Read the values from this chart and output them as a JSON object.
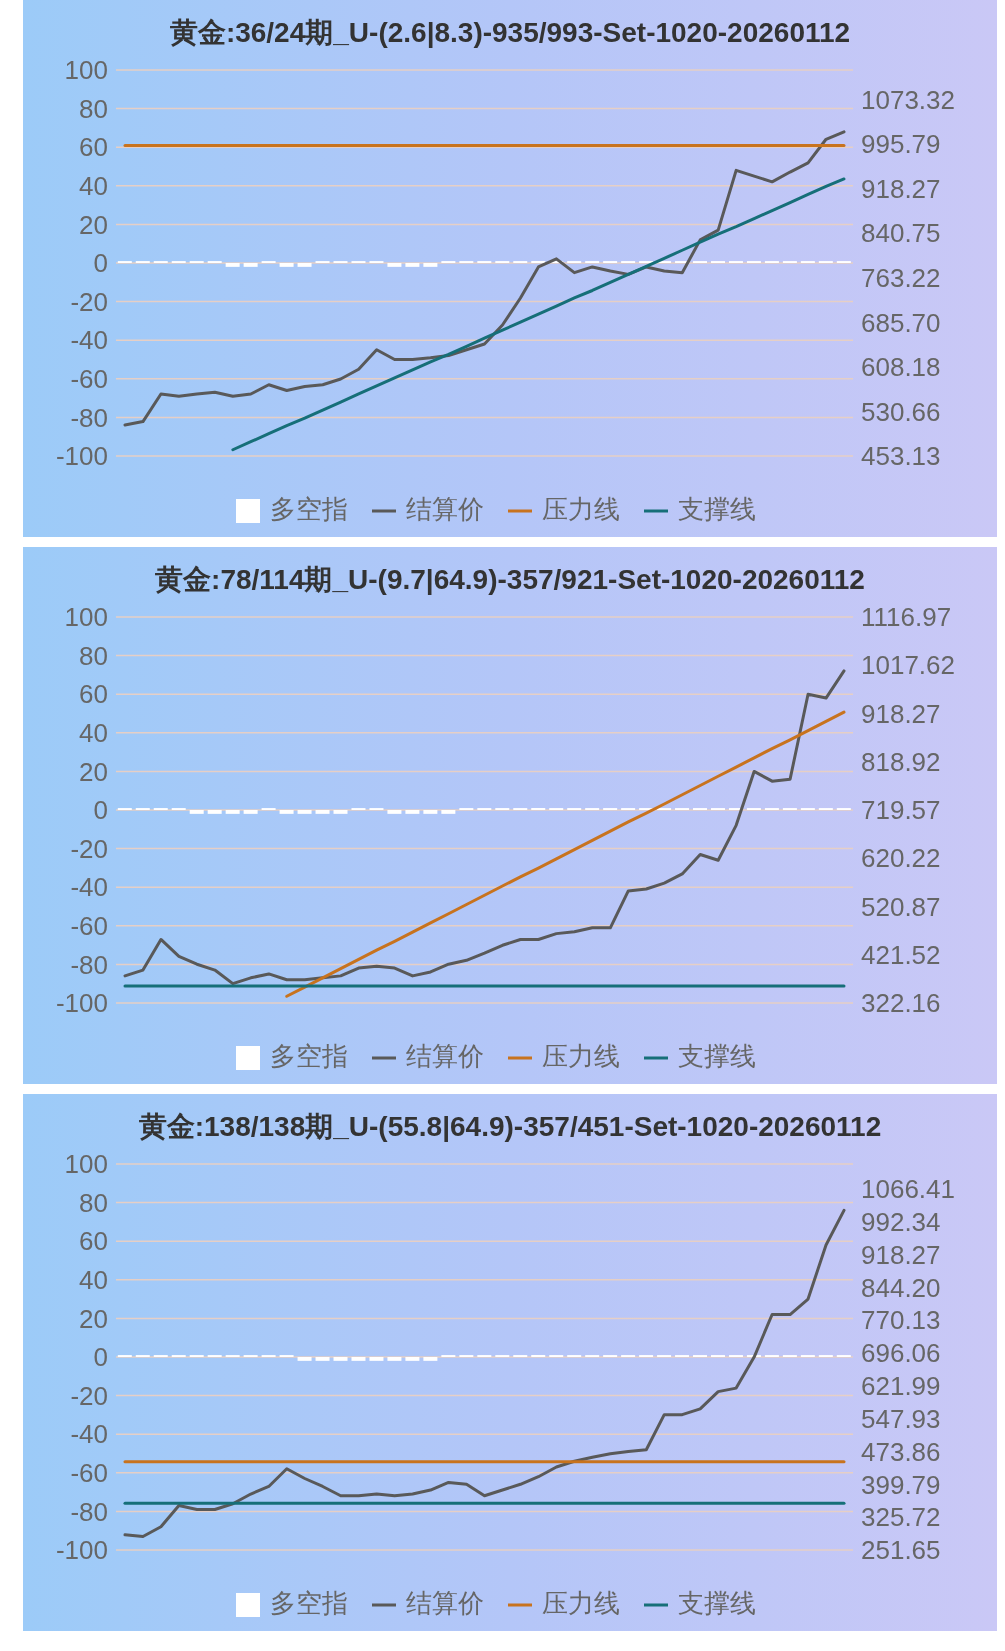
{
  "chart_data": [
    {
      "type": "line",
      "title": "黄金:36/24期_U-(2.6|8.3)-935/993-Set-1020-20260112",
      "categories": [
        null,
        null,
        null,
        null,
        null,
        null,
        null,
        null,
        null,
        null,
        null,
        null,
        null,
        null,
        null,
        null,
        null,
        null,
        null,
        null,
        null,
        null,
        null,
        null,
        null,
        null,
        null,
        null,
        null,
        null,
        null,
        null,
        null,
        null,
        null,
        null,
        null,
        null,
        null,
        null,
        null
      ],
      "series": [
        {
          "name": "多空指",
          "type": "bar",
          "color": "#ffffff",
          "values": [
            1,
            1,
            1,
            1,
            1,
            1,
            -2,
            -2,
            1,
            -2,
            -2,
            1,
            1,
            1,
            1,
            -2,
            -2,
            -2,
            1,
            1,
            1,
            1,
            1,
            1,
            1,
            1,
            1,
            1,
            1,
            1,
            1,
            1,
            1,
            1,
            1,
            1,
            1,
            1,
            1,
            1,
            1
          ]
        },
        {
          "name": "结算价",
          "axis": "y2",
          "color": "#595959",
          "values": [
            507,
            513,
            561,
            557,
            561,
            564,
            557,
            561,
            577,
            567,
            574,
            577,
            587,
            604,
            638,
            621,
            621,
            624,
            628,
            638,
            648,
            681,
            728,
            782,
            796,
            772,
            782,
            775,
            769,
            782,
            775,
            772,
            829,
            846,
            950,
            940,
            930,
            947,
            963,
            1004,
            1017
          ]
        },
        {
          "name": "压力线",
          "axis": "y2",
          "color": "#c8731e",
          "values": [
            993,
            993,
            993,
            993,
            993,
            993,
            993,
            993,
            993,
            993,
            993,
            993,
            993,
            993,
            993,
            993,
            993,
            993,
            993,
            993,
            993,
            993,
            993,
            993,
            993,
            993,
            993,
            993,
            993,
            993,
            993,
            993,
            993,
            993,
            993,
            993,
            993,
            993,
            993,
            993,
            993
          ]
        },
        {
          "name": "支撑线",
          "axis": "y2",
          "color": "#166f78",
          "values": [
            null,
            null,
            null,
            null,
            null,
            null,
            464,
            478,
            492,
            506,
            519,
            533,
            547,
            561,
            575,
            589,
            603,
            617,
            630,
            644,
            658,
            672,
            686,
            700,
            714,
            728,
            741,
            755,
            769,
            783,
            797,
            811,
            825,
            839,
            852,
            866,
            880,
            894,
            908,
            922,
            935
          ]
        }
      ],
      "ylim": [
        -100,
        100
      ],
      "yticks": [
        -100,
        -80,
        -60,
        -40,
        -20,
        0,
        20,
        40,
        60,
        80,
        100
      ],
      "y2lim": [
        453.13,
        1124.5
      ],
      "y2ticks": [
        453.13,
        530.66,
        608.18,
        {
          "value": 685.7,
          "label": "685.70"
        },
        763.22,
        840.75,
        918.27,
        995.79,
        1073.32
      ],
      "grid": "y",
      "legend": "bottom"
    },
    {
      "type": "line",
      "title": "黄金:78/114期_U-(9.7|64.9)-357/921-Set-1020-20260112",
      "categories": [
        null,
        null,
        null,
        null,
        null,
        null,
        null,
        null,
        null,
        null,
        null,
        null,
        null,
        null,
        null,
        null,
        null,
        null,
        null,
        null,
        null,
        null,
        null,
        null,
        null,
        null,
        null,
        null,
        null,
        null,
        null,
        null,
        null,
        null,
        null,
        null,
        null,
        null,
        null,
        null,
        null
      ],
      "series": [
        {
          "name": "多空指",
          "type": "bar",
          "color": "#ffffff",
          "values": [
            1,
            1,
            1,
            1,
            -2,
            -2,
            -2,
            -2,
            1,
            -2,
            -2,
            -2,
            -2,
            1,
            1,
            -2,
            -2,
            -2,
            -2,
            1,
            1,
            1,
            1,
            1,
            1,
            1,
            1,
            1,
            1,
            1,
            1,
            1,
            1,
            1,
            1,
            1,
            1,
            1,
            1,
            1,
            1
          ]
        },
        {
          "name": "结算价",
          "axis": "y2",
          "color": "#595959",
          "values": [
            378,
            390,
            453,
            418,
            402,
            390,
            362,
            374,
            382,
            370,
            370,
            374,
            378,
            394,
            398,
            394,
            378,
            386,
            402,
            410,
            425,
            441,
            453,
            453,
            465,
            469,
            477,
            477,
            553,
            557,
            569,
            588,
            628,
            616,
            688,
            799,
            779,
            783,
            958,
            950,
            1006
          ]
        },
        {
          "name": "压力线",
          "axis": "y2",
          "color": "#c8731e",
          "values": [
            null,
            null,
            null,
            null,
            null,
            null,
            null,
            null,
            null,
            336,
            355,
            374,
            393,
            412,
            431,
            449,
            468,
            487,
            506,
            525,
            544,
            563,
            582,
            600,
            619,
            638,
            657,
            676,
            695,
            713,
            732,
            751,
            770,
            789,
            808,
            827,
            846,
            864,
            883,
            902,
            921
          ]
        },
        {
          "name": "支撑线",
          "axis": "y2",
          "color": "#166f78",
          "values": [
            357,
            357,
            357,
            357,
            357,
            357,
            357,
            357,
            357,
            357,
            357,
            357,
            357,
            357,
            357,
            357,
            357,
            357,
            357,
            357,
            357,
            357,
            357,
            357,
            357,
            357,
            357,
            357,
            357,
            357,
            357,
            357,
            357,
            357,
            357,
            357,
            357,
            357,
            357,
            357,
            357
          ]
        }
      ],
      "ylim": [
        -100,
        100
      ],
      "yticks": [
        -100,
        -80,
        -60,
        -40,
        -20,
        0,
        20,
        40,
        60,
        80,
        100
      ],
      "y2lim": [
        322.16,
        1116.97
      ],
      "y2ticks": [
        322.16,
        421.52,
        520.87,
        620.22,
        719.57,
        818.92,
        918.27,
        1017.62,
        1116.97
      ],
      "grid": "y",
      "legend": "bottom"
    },
    {
      "type": "line",
      "title": "黄金:138/138期_U-(55.8|64.9)-357/451-Set-1020-20260112",
      "categories": [
        null,
        null,
        null,
        null,
        null,
        null,
        null,
        null,
        null,
        null,
        null,
        null,
        null,
        null,
        null,
        null,
        null,
        null,
        null,
        null,
        null,
        null,
        null,
        null,
        null,
        null,
        null,
        null,
        null,
        null,
        null,
        null,
        null,
        null,
        null,
        null,
        null,
        null,
        null,
        null,
        null
      ],
      "series": [
        {
          "name": "多空指",
          "type": "bar",
          "color": "#ffffff",
          "values": [
            1,
            1,
            1,
            1,
            1,
            1,
            1,
            1,
            1,
            1,
            -2,
            -2,
            -2,
            -2,
            -2,
            -2,
            -2,
            -2,
            1,
            1,
            1,
            1,
            1,
            1,
            1,
            1,
            1,
            1,
            1,
            1,
            1,
            1,
            1,
            1,
            1,
            1,
            1,
            1,
            1,
            1,
            1
          ]
        },
        {
          "name": "结算价",
          "axis": "y2",
          "color": "#595959",
          "values": [
            286,
            282,
            304,
            352,
            343,
            343,
            356,
            378,
            395,
            435,
            413,
            395,
            374,
            374,
            378,
            374,
            378,
            387,
            404,
            400,
            374,
            387,
            400,
            417,
            439,
            452,
            461,
            469,
            474,
            478,
            557,
            557,
            570,
            609,
            617,
            687,
            783,
            783,
            818,
            940,
            1018
          ]
        },
        {
          "name": "压力线",
          "axis": "y2",
          "color": "#c8731e",
          "values": [
            451,
            451,
            451,
            451,
            451,
            451,
            451,
            451,
            451,
            451,
            451,
            451,
            451,
            451,
            451,
            451,
            451,
            451,
            451,
            451,
            451,
            451,
            451,
            451,
            451,
            451,
            451,
            451,
            451,
            451,
            451,
            451,
            451,
            451,
            451,
            451,
            451,
            451,
            451,
            451,
            451
          ]
        },
        {
          "name": "支撑线",
          "axis": "y2",
          "color": "#166f78",
          "values": [
            357,
            357,
            357,
            357,
            357,
            357,
            357,
            357,
            357,
            357,
            357,
            357,
            357,
            357,
            357,
            357,
            357,
            357,
            357,
            357,
            357,
            357,
            357,
            357,
            357,
            357,
            357,
            357,
            357,
            357,
            357,
            357,
            357,
            357,
            357,
            357,
            357,
            357,
            357,
            357,
            357
          ]
        }
      ],
      "ylim": [
        -100,
        100
      ],
      "yticks": [
        -100,
        -80,
        -60,
        -40,
        -20,
        0,
        20,
        40,
        60,
        80,
        100
      ],
      "y2lim": [
        251.65,
        1122.7
      ],
      "y2ticks": [
        251.65,
        325.72,
        399.79,
        473.86,
        547.93,
        621.99,
        696.06,
        770.13,
        {
          "value": 844.2,
          "label": "844.20"
        },
        918.27,
        992.34,
        1066.41
      ],
      "grid": "y",
      "legend": "bottom"
    }
  ]
}
